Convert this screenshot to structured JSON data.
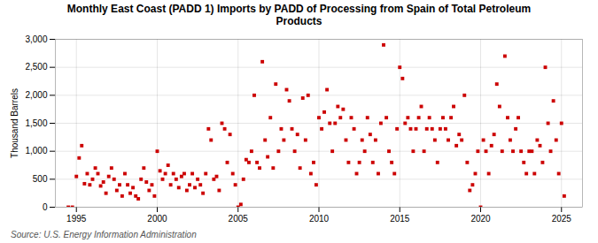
{
  "chart_data": {
    "type": "scatter",
    "title": "Monthly East Coast (PADD 1) Imports by PADD of Processing from Spain of Total Petroleum\nProducts",
    "ylabel": "Thousand Barrels",
    "source": "Source: U.S. Energy Information Administration",
    "color": "#cc0000",
    "marker": "square",
    "grid": true,
    "xlim": [
      1993.7,
      2026.3
    ],
    "ylim": [
      0,
      3000
    ],
    "xticks": [
      1995,
      2000,
      2005,
      2010,
      2015,
      2020,
      2025
    ],
    "yticks": [
      0,
      500,
      {
        "value": 1000,
        "label": "1,000"
      },
      {
        "value": 1500,
        "label": "1,500"
      },
      {
        "value": 2000,
        "label": "2,000"
      },
      {
        "value": 2500,
        "label": "2,500"
      },
      {
        "value": 3000,
        "label": "3,000"
      }
    ],
    "x": [
      1994.5,
      1994.75,
      1995.0,
      1995.17,
      1995.33,
      1995.5,
      1995.67,
      1995.83,
      1996.0,
      1996.17,
      1996.33,
      1996.5,
      1996.67,
      1996.83,
      1997.0,
      1997.17,
      1997.33,
      1997.5,
      1997.67,
      1997.83,
      1998.0,
      1998.17,
      1998.33,
      1998.5,
      1998.67,
      1998.83,
      1999.0,
      1999.17,
      1999.33,
      1999.5,
      1999.67,
      1999.83,
      2000.0,
      2000.17,
      2000.33,
      2000.5,
      2000.67,
      2000.83,
      2001.0,
      2001.17,
      2001.33,
      2001.5,
      2001.67,
      2001.83,
      2002.0,
      2002.17,
      2002.33,
      2002.5,
      2002.67,
      2002.83,
      2003.0,
      2003.17,
      2003.33,
      2003.5,
      2003.67,
      2003.83,
      2004.0,
      2004.17,
      2004.33,
      2004.5,
      2004.67,
      2004.83,
      2005.0,
      2005.17,
      2005.33,
      2005.5,
      2005.67,
      2005.83,
      2006.0,
      2006.17,
      2006.33,
      2006.5,
      2006.67,
      2006.83,
      2007.0,
      2007.17,
      2007.33,
      2007.5,
      2007.67,
      2007.83,
      2008.0,
      2008.17,
      2008.33,
      2008.5,
      2008.67,
      2008.83,
      2009.0,
      2009.17,
      2009.33,
      2009.5,
      2009.67,
      2009.83,
      2010.0,
      2010.17,
      2010.33,
      2010.5,
      2010.67,
      2010.83,
      2011.0,
      2011.17,
      2011.33,
      2011.5,
      2011.67,
      2011.83,
      2012.0,
      2012.17,
      2012.33,
      2012.5,
      2012.67,
      2012.83,
      2013.0,
      2013.17,
      2013.33,
      2013.5,
      2013.67,
      2013.83,
      2014.0,
      2014.17,
      2014.33,
      2014.5,
      2014.67,
      2014.83,
      2015.0,
      2015.17,
      2015.33,
      2015.5,
      2015.67,
      2015.83,
      2016.0,
      2016.17,
      2016.33,
      2016.5,
      2016.67,
      2016.83,
      2017.0,
      2017.17,
      2017.33,
      2017.5,
      2017.67,
      2017.83,
      2018.0,
      2018.17,
      2018.33,
      2018.5,
      2018.67,
      2018.83,
      2019.0,
      2019.17,
      2019.33,
      2019.5,
      2019.67,
      2019.83,
      2020.0,
      2020.17,
      2020.33,
      2020.5,
      2020.67,
      2020.83,
      2021.0,
      2021.17,
      2021.33,
      2021.5,
      2021.67,
      2021.83,
      2022.0,
      2022.17,
      2022.33,
      2022.5,
      2022.67,
      2022.83,
      2023.0,
      2023.17,
      2023.33,
      2023.5,
      2023.67,
      2023.83,
      2024.0,
      2024.17,
      2024.33,
      2024.5,
      2024.67,
      2024.83,
      2025.0,
      2025.17
    ],
    "values": [
      0,
      0,
      550,
      880,
      1100,
      420,
      600,
      400,
      500,
      700,
      600,
      380,
      450,
      250,
      550,
      700,
      500,
      300,
      400,
      200,
      600,
      400,
      250,
      350,
      200,
      150,
      500,
      700,
      450,
      300,
      400,
      200,
      1000,
      650,
      500,
      600,
      750,
      400,
      600,
      500,
      350,
      550,
      600,
      300,
      400,
      600,
      350,
      500,
      400,
      250,
      600,
      1400,
      1200,
      500,
      550,
      300,
      1500,
      1400,
      800,
      1300,
      600,
      400,
      0,
      50,
      500,
      850,
      800,
      1000,
      2000,
      800,
      700,
      2600,
      1200,
      900,
      1600,
      700,
      2200,
      1000,
      1400,
      1200,
      2100,
      1900,
      1400,
      1000,
      1300,
      700,
      1950,
      1200,
      2000,
      600,
      800,
      400,
      1600,
      1400,
      1700,
      2100,
      1500,
      1000,
      1500,
      1800,
      1600,
      1750,
      1200,
      800,
      1600,
      1400,
      600,
      800,
      1200,
      1000,
      1600,
      1300,
      800,
      1200,
      600,
      1500,
      2900,
      1600,
      1000,
      800,
      600,
      1400,
      2500,
      2300,
      1500,
      1600,
      1400,
      1000,
      1400,
      1600,
      1800,
      1000,
      1400,
      1600,
      1400,
      1200,
      800,
      1400,
      1600,
      1400,
      1200,
      1600,
      1800,
      1100,
      1300,
      1200,
      2000,
      800,
      300,
      400,
      600,
      1000,
      0,
      1200,
      1000,
      600,
      1100,
      1300,
      2200,
      1800,
      1000,
      2700,
      1600,
      1200,
      1000,
      1400,
      1600,
      1000,
      800,
      600,
      1000,
      1000,
      600,
      1200,
      1100,
      800,
      2500,
      1500,
      1000,
      1900,
      1200,
      600,
      1500,
      200
    ]
  }
}
